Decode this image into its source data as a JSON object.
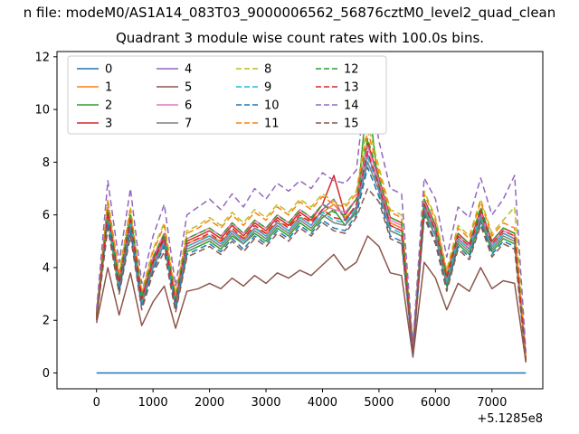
{
  "figure": {
    "suptitle": "n file: modeM0/AS1A14_083T03_9000006562_56876cztM0_level2_quad_clean"
  },
  "chart_data": {
    "type": "line",
    "title": "Quadrant 3 module wise count rates with 100.0s bins.",
    "xlabel": "",
    "ylabel": "",
    "x_offset_label": "+5.1285e8",
    "xlim": [
      -700,
      7900
    ],
    "ylim": [
      -0.6,
      12.2
    ],
    "x_ticks": [
      0,
      1000,
      2000,
      3000,
      4000,
      5000,
      6000,
      7000
    ],
    "y_ticks": [
      0,
      2,
      4,
      6,
      8,
      10,
      12
    ],
    "grid": false,
    "legend_position": "upper left",
    "legend_columns": 4,
    "x": [
      0,
      200,
      400,
      600,
      800,
      1000,
      1200,
      1400,
      1600,
      1800,
      2000,
      2200,
      2400,
      2600,
      2800,
      3000,
      3200,
      3400,
      3600,
      3800,
      4000,
      4200,
      4400,
      4600,
      4800,
      5000,
      5200,
      5400,
      5600,
      5800,
      6000,
      6200,
      6400,
      6600,
      6800,
      7000,
      7200,
      7400,
      7600
    ],
    "series": [
      {
        "name": "0",
        "color": "#1f77b4",
        "dashed": false,
        "values": [
          0,
          0,
          0,
          0,
          0,
          0,
          0,
          0,
          0,
          0,
          0,
          0,
          0,
          0,
          0,
          0,
          0,
          0,
          0,
          0,
          0,
          0,
          0,
          0,
          0,
          0,
          0,
          0,
          0,
          0,
          0,
          0,
          0,
          0,
          0,
          0,
          0,
          0,
          0
        ]
      },
      {
        "name": "1",
        "color": "#ff7f0e",
        "dashed": false,
        "values": [
          2.1,
          6.0,
          3.4,
          5.7,
          2.8,
          4.2,
          5.0,
          2.7,
          4.9,
          5.1,
          5.2,
          5.0,
          5.4,
          5.1,
          5.5,
          5.3,
          5.7,
          5.6,
          5.9,
          5.8,
          6.1,
          6.4,
          5.9,
          6.3,
          8.8,
          7.2,
          5.7,
          5.5,
          0.9,
          6.3,
          5.4,
          3.5,
          5.1,
          4.7,
          6.0,
          4.8,
          5.3,
          5.1,
          0.5
        ]
      },
      {
        "name": "2",
        "color": "#2ca02c",
        "dashed": false,
        "values": [
          2.0,
          5.8,
          3.1,
          5.5,
          2.6,
          4.0,
          4.9,
          2.5,
          4.6,
          4.8,
          5.0,
          4.7,
          5.2,
          4.9,
          5.3,
          5.0,
          5.5,
          5.2,
          5.7,
          5.4,
          5.9,
          6.2,
          5.6,
          6.1,
          10.7,
          6.9,
          5.4,
          5.2,
          0.7,
          6.1,
          5.2,
          3.3,
          4.9,
          4.5,
          5.8,
          4.6,
          5.1,
          4.9,
          0.5
        ]
      },
      {
        "name": "3",
        "color": "#d62728",
        "dashed": false,
        "values": [
          2.2,
          6.2,
          3.5,
          5.9,
          2.9,
          4.3,
          5.2,
          2.8,
          5.0,
          5.2,
          5.4,
          5.1,
          5.6,
          5.2,
          5.7,
          5.4,
          5.9,
          5.6,
          6.1,
          5.8,
          6.4,
          7.5,
          6.0,
          6.6,
          8.7,
          7.4,
          5.9,
          5.7,
          0.9,
          6.6,
          5.6,
          3.7,
          5.3,
          4.9,
          6.2,
          5.0,
          5.5,
          5.3,
          0.6
        ]
      },
      {
        "name": "4",
        "color": "#9467bd",
        "dashed": false,
        "values": [
          2.1,
          6.1,
          3.3,
          5.8,
          2.7,
          4.1,
          5.1,
          2.6,
          4.8,
          5.0,
          5.2,
          4.9,
          5.4,
          5.0,
          5.5,
          5.2,
          5.7,
          5.4,
          5.9,
          5.6,
          6.2,
          6.6,
          5.8,
          6.3,
          8.3,
          7.1,
          5.6,
          5.4,
          0.8,
          6.4,
          5.4,
          3.5,
          5.1,
          4.7,
          6.0,
          4.8,
          5.3,
          5.1,
          0.5
        ]
      },
      {
        "name": "5",
        "color": "#8c564b",
        "dashed": false,
        "values": [
          1.9,
          4.0,
          2.2,
          3.8,
          1.8,
          2.7,
          3.3,
          1.7,
          3.1,
          3.2,
          3.4,
          3.2,
          3.6,
          3.3,
          3.7,
          3.4,
          3.8,
          3.6,
          3.9,
          3.7,
          4.1,
          4.5,
          3.9,
          4.2,
          5.2,
          4.8,
          3.8,
          3.7,
          0.6,
          4.2,
          3.6,
          2.4,
          3.4,
          3.1,
          4.0,
          3.2,
          3.5,
          3.4,
          0.4
        ]
      },
      {
        "name": "6",
        "color": "#e377c2",
        "dashed": false,
        "values": [
          2.3,
          6.3,
          3.6,
          6.0,
          3.0,
          4.4,
          5.3,
          2.9,
          5.1,
          5.3,
          5.5,
          5.2,
          5.7,
          5.3,
          5.8,
          5.5,
          6.0,
          5.7,
          6.2,
          5.9,
          6.4,
          6.2,
          6.1,
          6.6,
          8.6,
          7.3,
          5.8,
          5.6,
          1.0,
          6.5,
          5.5,
          3.6,
          5.2,
          4.8,
          6.1,
          4.9,
          5.4,
          5.2,
          0.6
        ]
      },
      {
        "name": "7",
        "color": "#7f7f7f",
        "dashed": false,
        "values": [
          2.0,
          5.9,
          3.2,
          5.6,
          2.6,
          4.0,
          4.9,
          2.5,
          4.7,
          4.9,
          5.1,
          4.8,
          5.3,
          4.9,
          5.4,
          5.1,
          5.6,
          5.3,
          5.8,
          5.5,
          6.0,
          5.7,
          5.6,
          6.2,
          8.0,
          6.9,
          5.4,
          5.2,
          0.8,
          6.2,
          5.2,
          3.4,
          5.0,
          4.6,
          5.9,
          4.7,
          5.2,
          5.0,
          0.5
        ]
      },
      {
        "name": "8",
        "color": "#bcbd22",
        "dashed": true,
        "values": [
          2.2,
          6.6,
          3.8,
          6.3,
          3.1,
          4.7,
          5.7,
          3.0,
          5.4,
          5.6,
          5.9,
          5.6,
          6.1,
          5.7,
          6.2,
          5.9,
          6.4,
          6.1,
          6.6,
          6.3,
          6.8,
          6.5,
          6.4,
          6.9,
          9.5,
          7.8,
          6.2,
          6.0,
          1.0,
          6.9,
          5.9,
          3.9,
          5.6,
          5.2,
          6.6,
          5.3,
          5.8,
          6.3,
          0.7
        ]
      },
      {
        "name": "9",
        "color": "#17becf",
        "dashed": true,
        "values": [
          2.1,
          6.0,
          3.3,
          5.7,
          2.7,
          4.1,
          5.0,
          2.6,
          4.8,
          5.0,
          5.2,
          4.9,
          5.4,
          5.0,
          5.5,
          5.2,
          5.7,
          5.4,
          5.9,
          5.6,
          6.1,
          5.8,
          5.7,
          6.3,
          8.2,
          7.0,
          5.5,
          5.3,
          0.8,
          6.3,
          5.3,
          3.5,
          5.1,
          4.7,
          6.0,
          4.8,
          5.3,
          5.1,
          0.5
        ]
      },
      {
        "name": "10",
        "color": "#1f77b4",
        "dashed": true,
        "values": [
          2.0,
          5.7,
          3.1,
          5.4,
          2.5,
          3.9,
          4.8,
          2.4,
          4.5,
          4.7,
          4.9,
          4.6,
          5.1,
          4.7,
          5.2,
          4.9,
          5.4,
          5.1,
          5.6,
          5.3,
          5.8,
          5.5,
          5.4,
          6.0,
          7.8,
          6.7,
          5.2,
          5.0,
          0.7,
          6.0,
          5.0,
          3.2,
          4.8,
          4.4,
          5.7,
          4.5,
          5.0,
          4.8,
          0.5
        ]
      },
      {
        "name": "11",
        "color": "#ff7f0e",
        "dashed": true,
        "values": [
          2.3,
          6.5,
          3.7,
          6.2,
          3.0,
          4.6,
          5.6,
          2.9,
          5.3,
          5.5,
          5.8,
          5.5,
          6.0,
          5.6,
          6.1,
          5.8,
          6.3,
          6.0,
          6.5,
          6.2,
          6.7,
          6.4,
          6.3,
          6.8,
          9.2,
          7.6,
          6.1,
          5.9,
          1.0,
          6.8,
          5.8,
          3.8,
          5.5,
          5.1,
          6.5,
          5.2,
          5.7,
          5.5,
          0.6
        ]
      },
      {
        "name": "12",
        "color": "#2ca02c",
        "dashed": true,
        "values": [
          2.2,
          6.2,
          3.5,
          6.0,
          2.9,
          4.4,
          5.3,
          2.8,
          5.1,
          5.3,
          5.5,
          5.2,
          5.7,
          5.3,
          5.8,
          5.5,
          6.0,
          5.7,
          6.2,
          5.9,
          6.4,
          6.1,
          6.0,
          6.6,
          8.9,
          7.4,
          5.9,
          5.7,
          0.9,
          6.6,
          5.6,
          3.7,
          5.3,
          4.9,
          6.3,
          5.0,
          5.5,
          5.3,
          0.6
        ]
      },
      {
        "name": "13",
        "color": "#d62728",
        "dashed": true,
        "values": [
          2.1,
          6.1,
          3.4,
          5.8,
          2.8,
          4.2,
          5.1,
          2.7,
          4.9,
          5.1,
          5.3,
          5.0,
          5.5,
          5.1,
          5.6,
          5.3,
          5.8,
          5.5,
          6.0,
          5.7,
          6.2,
          5.9,
          5.8,
          6.4,
          8.4,
          7.1,
          5.6,
          5.4,
          0.9,
          6.4,
          5.4,
          3.6,
          5.2,
          4.8,
          6.1,
          4.9,
          5.4,
          5.2,
          0.5
        ]
      },
      {
        "name": "14",
        "color": "#9467bd",
        "dashed": true,
        "values": [
          2.4,
          7.3,
          4.2,
          7.0,
          3.4,
          5.2,
          6.4,
          3.3,
          6.0,
          6.3,
          6.6,
          6.2,
          6.8,
          6.3,
          7.0,
          6.6,
          7.2,
          6.9,
          7.3,
          7.0,
          7.6,
          7.3,
          7.2,
          7.7,
          11.5,
          8.8,
          7.0,
          6.8,
          1.1,
          7.4,
          6.6,
          4.4,
          6.3,
          5.9,
          7.4,
          6.0,
          6.6,
          7.5,
          0.8
        ]
      },
      {
        "name": "15",
        "color": "#8c564b",
        "dashed": true,
        "values": [
          2.0,
          5.5,
          3.0,
          5.2,
          2.4,
          3.8,
          4.6,
          2.3,
          4.4,
          4.6,
          4.8,
          4.5,
          5.0,
          4.6,
          5.1,
          4.8,
          5.3,
          5.0,
          5.5,
          5.2,
          5.7,
          5.4,
          5.3,
          5.9,
          7.0,
          6.5,
          5.1,
          4.9,
          0.7,
          5.9,
          4.9,
          3.1,
          4.7,
          4.3,
          5.6,
          4.4,
          4.9,
          4.7,
          0.4
        ]
      }
    ]
  }
}
